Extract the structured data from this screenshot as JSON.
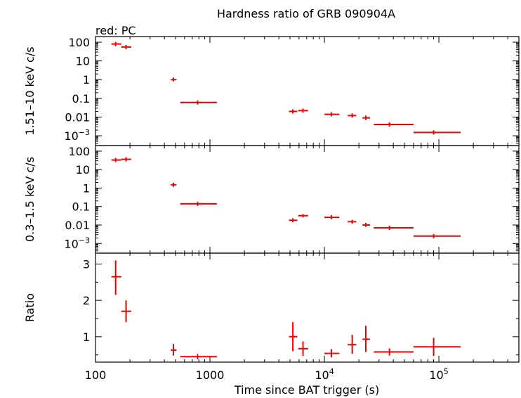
{
  "title": "Hardness ratio of GRB 090904A",
  "legend_text": "red: PC",
  "chart_data": [
    {
      "type": "scatter",
      "panel": "hard-band",
      "ylabel": "1.51–10 keV c/s",
      "yscale": "log",
      "ylim": [
        0.0003,
        200
      ],
      "yticks": [
        {
          "v": 100,
          "label": "100"
        },
        {
          "v": 10,
          "label": "10"
        },
        {
          "v": 1,
          "label": "1"
        },
        {
          "v": 0.1,
          "label": "0.1"
        },
        {
          "v": 0.01,
          "label": "0.01"
        },
        {
          "v": 0.001,
          "label": "10",
          "exp": "−3"
        }
      ],
      "series": [
        {
          "color": "#ee0000",
          "points": [
            {
              "x": 150,
              "xlo": 138,
              "xhi": 168,
              "y": 80
            },
            {
              "x": 185,
              "xlo": 168,
              "xhi": 205,
              "y": 55
            },
            {
              "x": 480,
              "xlo": 455,
              "xhi": 510,
              "y": 1.0,
              "ylo": 0.8,
              "yhi": 1.3
            },
            {
              "x": 780,
              "xlo": 550,
              "xhi": 1150,
              "y": 0.06
            },
            {
              "x": 5300,
              "xlo": 4900,
              "xhi": 5800,
              "y": 0.02
            },
            {
              "x": 6500,
              "xlo": 5900,
              "xhi": 7200,
              "y": 0.022
            },
            {
              "x": 11500,
              "xlo": 10000,
              "xhi": 13500,
              "y": 0.014
            },
            {
              "x": 17500,
              "xlo": 16000,
              "xhi": 19000,
              "y": 0.012
            },
            {
              "x": 23000,
              "xlo": 21500,
              "xhi": 25000,
              "y": 0.009,
              "ylo": 0.007,
              "yhi": 0.012
            },
            {
              "x": 37000,
              "xlo": 27000,
              "xhi": 60000,
              "y": 0.004
            },
            {
              "x": 90000,
              "xlo": 60000,
              "xhi": 155000,
              "y": 0.0015
            }
          ]
        }
      ]
    },
    {
      "type": "scatter",
      "panel": "soft-band",
      "ylabel": "0.3–1.5 keV c/s",
      "yscale": "log",
      "ylim": [
        0.0003,
        200
      ],
      "yticks": [
        {
          "v": 100,
          "label": "100"
        },
        {
          "v": 10,
          "label": "10"
        },
        {
          "v": 1,
          "label": "1"
        },
        {
          "v": 0.1,
          "label": "0.1"
        },
        {
          "v": 0.01,
          "label": "0.01"
        },
        {
          "v": 0.001,
          "label": "10",
          "exp": "−3"
        }
      ],
      "series": [
        {
          "color": "#ee0000",
          "points": [
            {
              "x": 150,
              "xlo": 138,
              "xhi": 168,
              "y": 33
            },
            {
              "x": 185,
              "xlo": 168,
              "xhi": 205,
              "y": 36
            },
            {
              "x": 480,
              "xlo": 455,
              "xhi": 510,
              "y": 1.5
            },
            {
              "x": 780,
              "xlo": 550,
              "xhi": 1150,
              "y": 0.14
            },
            {
              "x": 5300,
              "xlo": 4900,
              "xhi": 5800,
              "y": 0.018,
              "ylo": 0.014,
              "yhi": 0.023
            },
            {
              "x": 6500,
              "xlo": 5900,
              "xhi": 7200,
              "y": 0.032,
              "ylo": 0.026,
              "yhi": 0.039
            },
            {
              "x": 11500,
              "xlo": 10000,
              "xhi": 13500,
              "y": 0.026
            },
            {
              "x": 17500,
              "xlo": 16000,
              "xhi": 19000,
              "y": 0.015,
              "ylo": 0.012,
              "yhi": 0.019
            },
            {
              "x": 23000,
              "xlo": 21500,
              "xhi": 25000,
              "y": 0.01,
              "ylo": 0.008,
              "yhi": 0.013
            },
            {
              "x": 37000,
              "xlo": 27000,
              "xhi": 60000,
              "y": 0.007
            },
            {
              "x": 90000,
              "xlo": 60000,
              "xhi": 155000,
              "y": 0.0025
            }
          ]
        }
      ]
    },
    {
      "type": "scatter",
      "panel": "ratio",
      "xlabel": "Time since BAT trigger (s)",
      "ylabel": "Ratio",
      "yscale": "linear",
      "ylim": [
        0.3,
        3.3
      ],
      "yticks": [
        {
          "v": 1,
          "label": "1"
        },
        {
          "v": 2,
          "label": "2"
        },
        {
          "v": 3,
          "label": "3"
        }
      ],
      "xscale": "log",
      "xlim": [
        100,
        500000
      ],
      "xticks": [
        {
          "v": 100,
          "label": "100"
        },
        {
          "v": 1000,
          "label": "1000"
        },
        {
          "v": 10000,
          "label": "10",
          "exp": "4"
        },
        {
          "v": 100000,
          "label": "10",
          "exp": "5"
        }
      ],
      "series": [
        {
          "color": "#ee0000",
          "points": [
            {
              "x": 150,
              "xlo": 138,
              "xhi": 168,
              "y": 2.65,
              "ylo": 2.15,
              "yhi": 3.1
            },
            {
              "x": 185,
              "xlo": 168,
              "xhi": 205,
              "y": 1.7,
              "ylo": 1.4,
              "yhi": 2.0
            },
            {
              "x": 480,
              "xlo": 455,
              "xhi": 510,
              "y": 0.63,
              "ylo": 0.48,
              "yhi": 0.8
            },
            {
              "x": 780,
              "xlo": 550,
              "xhi": 1150,
              "y": 0.45,
              "ylo": 0.38,
              "yhi": 0.52
            },
            {
              "x": 5300,
              "xlo": 4900,
              "xhi": 5800,
              "y": 1.0,
              "ylo": 0.6,
              "yhi": 1.4
            },
            {
              "x": 6500,
              "xlo": 5900,
              "xhi": 7200,
              "y": 0.67,
              "ylo": 0.47,
              "yhi": 0.87
            },
            {
              "x": 11500,
              "xlo": 10000,
              "xhi": 13500,
              "y": 0.54,
              "ylo": 0.43,
              "yhi": 0.66
            },
            {
              "x": 17500,
              "xlo": 16000,
              "xhi": 19000,
              "y": 0.78,
              "ylo": 0.53,
              "yhi": 1.05
            },
            {
              "x": 23000,
              "xlo": 21500,
              "xhi": 25000,
              "y": 0.93,
              "ylo": 0.58,
              "yhi": 1.3
            },
            {
              "x": 37000,
              "xlo": 27000,
              "xhi": 60000,
              "y": 0.58,
              "ylo": 0.48,
              "yhi": 0.68
            },
            {
              "x": 90000,
              "xlo": 60000,
              "xhi": 155000,
              "y": 0.72,
              "ylo": 0.47,
              "yhi": 0.97
            }
          ]
        }
      ]
    }
  ]
}
